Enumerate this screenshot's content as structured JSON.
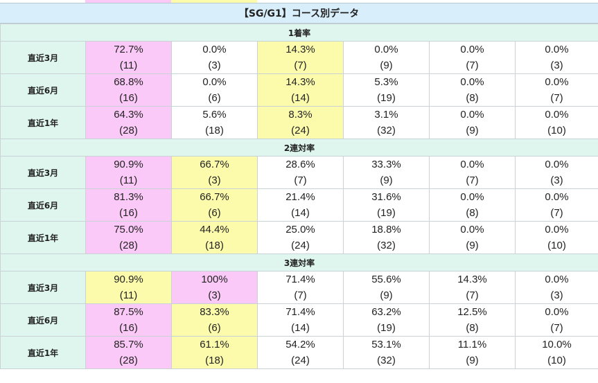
{
  "title": "【SG/G1】コース別データ",
  "colors": {
    "pink": "#fbc9f7",
    "yellow": "#fcfbac",
    "label_bg": "#dff6ef",
    "title_bg": "#d8eefa"
  },
  "sections": [
    {
      "name": "1着率",
      "rows": [
        {
          "label": "直近3月",
          "cells": [
            {
              "pct": "72.7%",
              "n": "(11)",
              "hl": "pink"
            },
            {
              "pct": "0.0%",
              "n": "(3)",
              "hl": ""
            },
            {
              "pct": "14.3%",
              "n": "(7)",
              "hl": "yellow"
            },
            {
              "pct": "0.0%",
              "n": "(9)",
              "hl": ""
            },
            {
              "pct": "0.0%",
              "n": "(7)",
              "hl": ""
            },
            {
              "pct": "0.0%",
              "n": "(3)",
              "hl": ""
            }
          ]
        },
        {
          "label": "直近6月",
          "cells": [
            {
              "pct": "68.8%",
              "n": "(16)",
              "hl": "pink"
            },
            {
              "pct": "0.0%",
              "n": "(6)",
              "hl": ""
            },
            {
              "pct": "14.3%",
              "n": "(14)",
              "hl": "yellow"
            },
            {
              "pct": "5.3%",
              "n": "(19)",
              "hl": ""
            },
            {
              "pct": "0.0%",
              "n": "(8)",
              "hl": ""
            },
            {
              "pct": "0.0%",
              "n": "(7)",
              "hl": ""
            }
          ]
        },
        {
          "label": "直近1年",
          "cells": [
            {
              "pct": "64.3%",
              "n": "(28)",
              "hl": "pink"
            },
            {
              "pct": "5.6%",
              "n": "(18)",
              "hl": ""
            },
            {
              "pct": "8.3%",
              "n": "(24)",
              "hl": "yellow"
            },
            {
              "pct": "3.1%",
              "n": "(32)",
              "hl": ""
            },
            {
              "pct": "0.0%",
              "n": "(9)",
              "hl": ""
            },
            {
              "pct": "0.0%",
              "n": "(10)",
              "hl": ""
            }
          ]
        }
      ]
    },
    {
      "name": "2連対率",
      "rows": [
        {
          "label": "直近3月",
          "cells": [
            {
              "pct": "90.9%",
              "n": "(11)",
              "hl": "pink"
            },
            {
              "pct": "66.7%",
              "n": "(3)",
              "hl": "yellow"
            },
            {
              "pct": "28.6%",
              "n": "(7)",
              "hl": ""
            },
            {
              "pct": "33.3%",
              "n": "(9)",
              "hl": ""
            },
            {
              "pct": "0.0%",
              "n": "(7)",
              "hl": ""
            },
            {
              "pct": "0.0%",
              "n": "(3)",
              "hl": ""
            }
          ]
        },
        {
          "label": "直近6月",
          "cells": [
            {
              "pct": "81.3%",
              "n": "(16)",
              "hl": "pink"
            },
            {
              "pct": "66.7%",
              "n": "(6)",
              "hl": "yellow"
            },
            {
              "pct": "21.4%",
              "n": "(14)",
              "hl": ""
            },
            {
              "pct": "31.6%",
              "n": "(19)",
              "hl": ""
            },
            {
              "pct": "0.0%",
              "n": "(8)",
              "hl": ""
            },
            {
              "pct": "0.0%",
              "n": "(7)",
              "hl": ""
            }
          ]
        },
        {
          "label": "直近1年",
          "cells": [
            {
              "pct": "75.0%",
              "n": "(28)",
              "hl": "pink"
            },
            {
              "pct": "44.4%",
              "n": "(18)",
              "hl": "yellow"
            },
            {
              "pct": "25.0%",
              "n": "(24)",
              "hl": ""
            },
            {
              "pct": "18.8%",
              "n": "(32)",
              "hl": ""
            },
            {
              "pct": "0.0%",
              "n": "(9)",
              "hl": ""
            },
            {
              "pct": "0.0%",
              "n": "(10)",
              "hl": ""
            }
          ]
        }
      ]
    },
    {
      "name": "3連対率",
      "rows": [
        {
          "label": "直近3月",
          "cells": [
            {
              "pct": "90.9%",
              "n": "(11)",
              "hl": "yellow"
            },
            {
              "pct": "100%",
              "n": "(3)",
              "hl": "pink"
            },
            {
              "pct": "71.4%",
              "n": "(7)",
              "hl": ""
            },
            {
              "pct": "55.6%",
              "n": "(9)",
              "hl": ""
            },
            {
              "pct": "14.3%",
              "n": "(7)",
              "hl": ""
            },
            {
              "pct": "0.0%",
              "n": "(3)",
              "hl": ""
            }
          ]
        },
        {
          "label": "直近6月",
          "cells": [
            {
              "pct": "87.5%",
              "n": "(16)",
              "hl": "pink"
            },
            {
              "pct": "83.3%",
              "n": "(6)",
              "hl": "yellow"
            },
            {
              "pct": "71.4%",
              "n": "(14)",
              "hl": ""
            },
            {
              "pct": "63.2%",
              "n": "(19)",
              "hl": ""
            },
            {
              "pct": "12.5%",
              "n": "(8)",
              "hl": ""
            },
            {
              "pct": "0.0%",
              "n": "(7)",
              "hl": ""
            }
          ]
        },
        {
          "label": "直近1年",
          "cells": [
            {
              "pct": "85.7%",
              "n": "(28)",
              "hl": "pink"
            },
            {
              "pct": "61.1%",
              "n": "(18)",
              "hl": "yellow"
            },
            {
              "pct": "54.2%",
              "n": "(24)",
              "hl": ""
            },
            {
              "pct": "53.1%",
              "n": "(32)",
              "hl": ""
            },
            {
              "pct": "11.1%",
              "n": "(9)",
              "hl": ""
            },
            {
              "pct": "10.0%",
              "n": "(10)",
              "hl": ""
            }
          ]
        }
      ]
    }
  ]
}
